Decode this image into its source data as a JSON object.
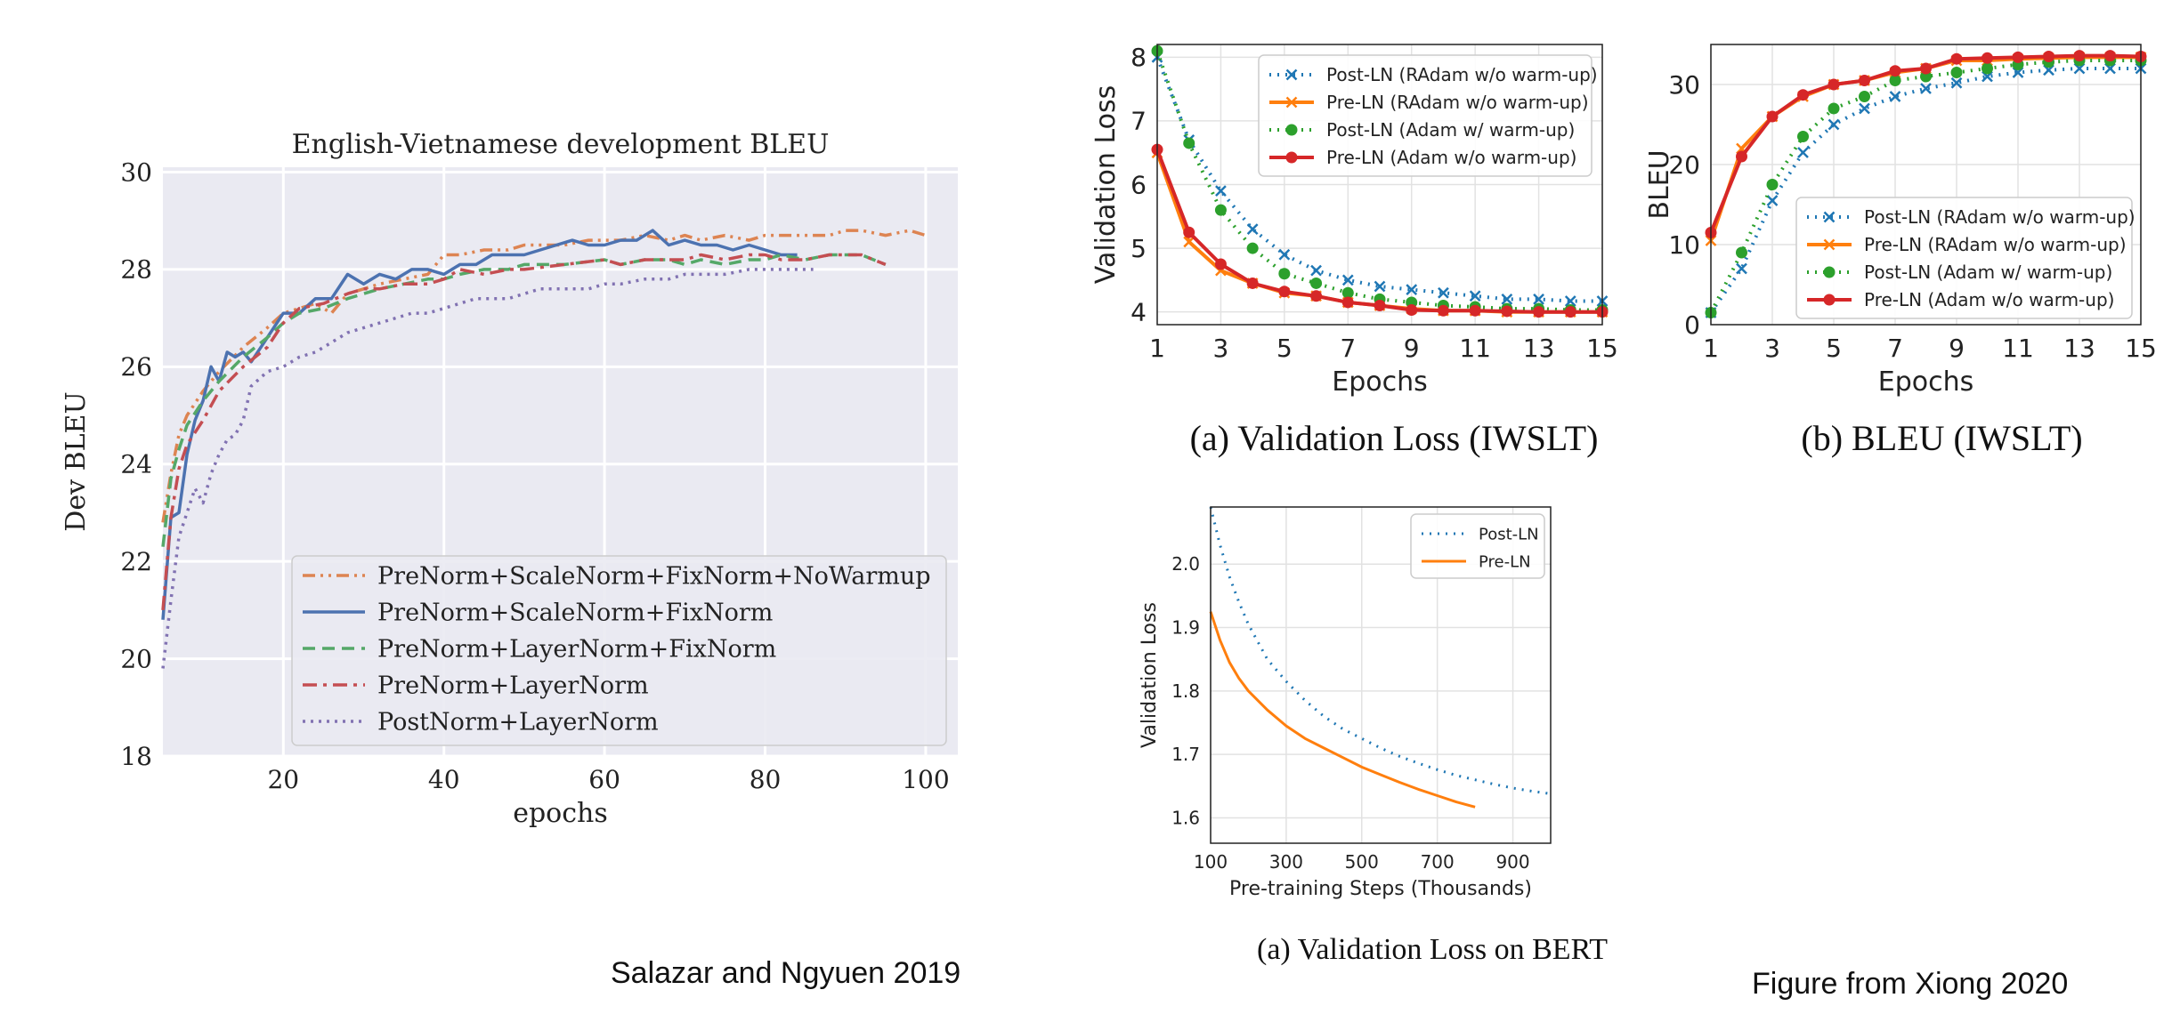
{
  "credits": {
    "left": "Salazar and Ngyuen 2019",
    "right": "Figure from Xiong 2020"
  },
  "chart_data": [
    {
      "id": "bleu_salazar",
      "type": "line",
      "title": "English-Vietnamese development BLEU",
      "xlabel": "epochs",
      "ylabel": "Dev BLEU",
      "xlim": [
        5,
        104
      ],
      "ylim": [
        18,
        30.1
      ],
      "xticks": [
        20,
        40,
        60,
        80,
        100
      ],
      "yticks": [
        18,
        20,
        22,
        24,
        26,
        28,
        30
      ],
      "grid": true,
      "legend_position": "lower-right",
      "colors": {
        "prenorm_scalenorm_fixnorm_nowarmup": "#dd8452",
        "prenorm_scalenorm_fixnorm": "#4c72b0",
        "prenorm_layernorm_fixnorm": "#55a868",
        "prenorm_layernorm": "#c44e52",
        "postnorm_layernorm": "#8172b2"
      },
      "series": [
        {
          "name": "PreNorm+ScaleNorm+FixNorm+NoWarmup",
          "dash": "dashdotdot",
          "x": [
            5,
            6,
            7,
            8,
            10,
            12,
            15,
            18,
            20,
            22,
            24,
            26,
            28,
            30,
            32,
            35,
            38,
            40,
            42,
            45,
            48,
            50,
            55,
            58,
            60,
            62,
            65,
            68,
            70,
            72,
            75,
            78,
            80,
            82,
            85,
            88,
            90,
            92,
            95,
            98,
            100
          ],
          "y": [
            22.8,
            23.8,
            24.6,
            25.0,
            25.5,
            25.9,
            26.4,
            26.8,
            27.1,
            27.2,
            27.3,
            27.1,
            27.5,
            27.6,
            27.7,
            27.8,
            27.9,
            28.3,
            28.3,
            28.4,
            28.4,
            28.5,
            28.5,
            28.6,
            28.6,
            28.6,
            28.7,
            28.6,
            28.7,
            28.6,
            28.7,
            28.6,
            28.7,
            28.7,
            28.7,
            28.7,
            28.8,
            28.8,
            28.7,
            28.8,
            28.7
          ]
        },
        {
          "name": "PreNorm+ScaleNorm+FixNorm",
          "dash": "solid",
          "x": [
            5,
            6,
            7,
            8,
            9,
            10,
            11,
            12,
            13,
            14,
            15,
            16,
            18,
            20,
            22,
            24,
            26,
            28,
            30,
            32,
            34,
            36,
            38,
            40,
            42,
            44,
            46,
            48,
            50,
            52,
            54,
            56,
            58,
            60,
            62,
            64,
            66,
            68,
            70,
            72,
            74,
            76,
            78,
            80,
            82,
            84
          ],
          "y": [
            20.8,
            22.9,
            23.0,
            24.2,
            24.9,
            25.3,
            26.0,
            25.7,
            26.3,
            26.2,
            26.3,
            26.1,
            26.6,
            27.1,
            27.1,
            27.4,
            27.4,
            27.9,
            27.7,
            27.9,
            27.8,
            28.0,
            28.0,
            27.9,
            28.1,
            28.1,
            28.3,
            28.3,
            28.3,
            28.4,
            28.5,
            28.6,
            28.5,
            28.5,
            28.6,
            28.6,
            28.8,
            28.5,
            28.6,
            28.5,
            28.5,
            28.4,
            28.5,
            28.4,
            28.3,
            28.3
          ]
        },
        {
          "name": "PreNorm+LayerNorm+FixNorm",
          "dash": "dashed",
          "x": [
            5,
            6,
            7,
            8,
            10,
            12,
            15,
            18,
            20,
            22,
            25,
            28,
            30,
            32,
            35,
            38,
            40,
            42,
            45,
            48,
            50,
            55,
            60,
            62,
            65,
            68,
            70,
            72,
            75,
            78,
            80,
            82,
            85,
            88,
            90,
            92,
            95
          ],
          "y": [
            22.3,
            23.7,
            24.3,
            24.8,
            25.3,
            25.7,
            26.2,
            26.6,
            26.9,
            27.1,
            27.2,
            27.4,
            27.5,
            27.6,
            27.7,
            27.8,
            27.8,
            27.9,
            28.0,
            28.0,
            28.1,
            28.1,
            28.2,
            28.1,
            28.2,
            28.2,
            28.1,
            28.2,
            28.1,
            28.2,
            28.2,
            28.3,
            28.2,
            28.3,
            28.3,
            28.3,
            28.1
          ]
        },
        {
          "name": "PreNorm+LayerNorm",
          "dash": "dashdot",
          "x": [
            5,
            6,
            7,
            8,
            10,
            12,
            15,
            18,
            20,
            22,
            25,
            28,
            30,
            32,
            35,
            38,
            40,
            42,
            45,
            48,
            50,
            55,
            60,
            62,
            65,
            68,
            70,
            72,
            75,
            78,
            80,
            82,
            85,
            88,
            90,
            92,
            95
          ],
          "y": [
            21.0,
            22.9,
            23.9,
            24.4,
            24.9,
            25.5,
            26.0,
            26.4,
            26.9,
            27.2,
            27.3,
            27.5,
            27.6,
            27.6,
            27.7,
            27.7,
            27.8,
            28.0,
            27.9,
            28.0,
            28.0,
            28.1,
            28.2,
            28.1,
            28.2,
            28.2,
            28.2,
            28.3,
            28.2,
            28.3,
            28.3,
            28.2,
            28.2,
            28.3,
            28.3,
            28.3,
            28.1
          ]
        },
        {
          "name": "PostNorm+LayerNorm",
          "dash": "dotted",
          "x": [
            5,
            6,
            7,
            8,
            9,
            10,
            11,
            12,
            13,
            14,
            15,
            16,
            18,
            20,
            22,
            24,
            26,
            28,
            30,
            32,
            34,
            36,
            38,
            40,
            42,
            44,
            46,
            48,
            50,
            52,
            55,
            58,
            60,
            62,
            65,
            68,
            70,
            72,
            75,
            78,
            80,
            82,
            84,
            86
          ],
          "y": [
            19.8,
            21.2,
            22.5,
            23.0,
            23.5,
            23.2,
            23.8,
            24.2,
            24.5,
            24.6,
            24.9,
            25.6,
            25.9,
            26.0,
            26.2,
            26.3,
            26.5,
            26.7,
            26.8,
            26.9,
            27.0,
            27.1,
            27.1,
            27.2,
            27.3,
            27.4,
            27.4,
            27.4,
            27.5,
            27.6,
            27.6,
            27.6,
            27.7,
            27.7,
            27.8,
            27.8,
            27.9,
            27.9,
            27.9,
            28.0,
            28.0,
            28.0,
            28.0,
            28.0
          ]
        }
      ]
    },
    {
      "id": "val_loss_iwslt",
      "type": "line",
      "caption": "(a)  Validation Loss (IWSLT)",
      "xlabel": "Epochs",
      "ylabel": "Validation Loss",
      "xlim": [
        1,
        15
      ],
      "ylim": [
        3.8,
        8.2
      ],
      "xticks": [
        1,
        3,
        5,
        7,
        9,
        11,
        13,
        15
      ],
      "yticks": [
        4,
        5,
        6,
        7,
        8
      ],
      "grid": true,
      "legend_position": "top-right",
      "colors": {
        "post_radam": "#1f77b4",
        "pre_radam": "#ff7f0e",
        "post_adam": "#2ca02c",
        "pre_adam": "#d62728"
      },
      "series": [
        {
          "name": "Post-LN (RAdam w/o warm-up)",
          "style": "dotted",
          "marker": "x",
          "x": [
            1,
            2,
            3,
            4,
            5,
            6,
            7,
            8,
            9,
            10,
            11,
            12,
            13,
            14,
            15
          ],
          "y": [
            8.0,
            6.7,
            5.9,
            5.3,
            4.9,
            4.65,
            4.5,
            4.4,
            4.35,
            4.3,
            4.25,
            4.2,
            4.2,
            4.17,
            4.17
          ]
        },
        {
          "name": "Pre-LN (RAdam w/o warm-up)",
          "style": "solid",
          "marker": "x",
          "x": [
            1,
            2,
            3,
            4,
            5,
            6,
            7,
            8,
            9,
            10,
            11,
            12,
            13,
            14,
            15
          ],
          "y": [
            6.5,
            5.1,
            4.65,
            4.45,
            4.3,
            4.25,
            4.15,
            4.1,
            4.05,
            4.02,
            4.02,
            4.0,
            4.0,
            4.0,
            4.0
          ]
        },
        {
          "name": "Post-LN (Adam w/ warm-up)",
          "style": "dotted",
          "marker": "o",
          "x": [
            1,
            2,
            3,
            4,
            5,
            6,
            7,
            8,
            9,
            10,
            11,
            12,
            13,
            14,
            15
          ],
          "y": [
            8.1,
            6.65,
            5.6,
            5.0,
            4.6,
            4.45,
            4.3,
            4.2,
            4.15,
            4.1,
            4.08,
            4.05,
            4.05,
            4.03,
            4.03
          ]
        },
        {
          "name": "Pre-LN (Adam w/o warm-up)",
          "style": "solid",
          "marker": "o",
          "x": [
            1,
            2,
            3,
            4,
            5,
            6,
            7,
            8,
            9,
            10,
            11,
            12,
            13,
            14,
            15
          ],
          "y": [
            6.55,
            5.25,
            4.75,
            4.45,
            4.32,
            4.25,
            4.15,
            4.1,
            4.03,
            4.02,
            4.02,
            4.01,
            4.0,
            4.0,
            4.0
          ]
        }
      ]
    },
    {
      "id": "bleu_iwslt",
      "type": "line",
      "caption": "(b)  BLEU (IWSLT)",
      "xlabel": "Epochs",
      "ylabel": "BLEU",
      "xlim": [
        1,
        15
      ],
      "ylim": [
        0,
        35
      ],
      "xticks": [
        1,
        3,
        5,
        7,
        9,
        11,
        13,
        15
      ],
      "yticks": [
        0,
        10,
        20,
        30
      ],
      "grid": true,
      "legend_position": "lower-right",
      "colors": {
        "post_radam": "#1f77b4",
        "pre_radam": "#ff7f0e",
        "post_adam": "#2ca02c",
        "pre_adam": "#d62728"
      },
      "series": [
        {
          "name": "Post-LN (RAdam w/o warm-up)",
          "style": "dotted",
          "marker": "x",
          "x": [
            1,
            2,
            3,
            4,
            5,
            6,
            7,
            8,
            9,
            10,
            11,
            12,
            13,
            14,
            15
          ],
          "y": [
            1.5,
            7.0,
            15.5,
            21.5,
            25.0,
            27.0,
            28.5,
            29.5,
            30.2,
            31.0,
            31.5,
            31.8,
            32.0,
            32.0,
            32.0
          ]
        },
        {
          "name": "Pre-LN (RAdam w/o warm-up)",
          "style": "solid",
          "marker": "x",
          "x": [
            1,
            2,
            3,
            4,
            5,
            6,
            7,
            8,
            9,
            10,
            11,
            12,
            13,
            14,
            15
          ],
          "y": [
            10.5,
            22.0,
            26.0,
            28.5,
            30.0,
            30.5,
            31.5,
            32.0,
            33.0,
            33.0,
            33.2,
            33.3,
            33.4,
            33.4,
            33.4
          ]
        },
        {
          "name": "Post-LN (Adam w/ warm-up)",
          "style": "dotted",
          "marker": "o",
          "x": [
            1,
            2,
            3,
            4,
            5,
            6,
            7,
            8,
            9,
            10,
            11,
            12,
            13,
            14,
            15
          ],
          "y": [
            1.5,
            9.0,
            17.5,
            23.5,
            27.0,
            28.5,
            30.5,
            31.0,
            31.5,
            32.0,
            32.5,
            32.8,
            33.0,
            33.0,
            33.0
          ]
        },
        {
          "name": "Pre-LN (Adam w/o warm-up)",
          "style": "solid",
          "marker": "o",
          "x": [
            1,
            2,
            3,
            4,
            5,
            6,
            7,
            8,
            9,
            10,
            11,
            12,
            13,
            14,
            15
          ],
          "y": [
            11.5,
            21.0,
            26.0,
            28.7,
            30.0,
            30.5,
            31.7,
            32.0,
            33.2,
            33.3,
            33.4,
            33.5,
            33.6,
            33.6,
            33.5
          ]
        }
      ]
    },
    {
      "id": "val_loss_bert",
      "type": "line",
      "caption": "(a)  Validation Loss on BERT",
      "xlabel": "Pre-training Steps (Thousands)",
      "ylabel": "Validation Loss",
      "xlim": [
        100,
        1000
      ],
      "ylim": [
        1.56,
        2.09
      ],
      "xticks": [
        100,
        300,
        500,
        700,
        900
      ],
      "yticks": [
        1.6,
        1.7,
        1.8,
        1.9,
        2.0
      ],
      "grid": true,
      "legend_position": "top-right",
      "colors": {
        "post": "#1f77b4",
        "pre": "#ff7f0e"
      },
      "series": [
        {
          "name": "Post-LN",
          "style": "dotted",
          "x": [
            100,
            125,
            150,
            175,
            200,
            250,
            300,
            350,
            400,
            450,
            500,
            550,
            600,
            650,
            700,
            750,
            800,
            850,
            900,
            950,
            1000
          ],
          "y": [
            2.09,
            2.03,
            1.98,
            1.94,
            1.905,
            1.85,
            1.815,
            1.785,
            1.76,
            1.74,
            1.725,
            1.71,
            1.697,
            1.686,
            1.676,
            1.667,
            1.66,
            1.653,
            1.647,
            1.642,
            1.638
          ]
        },
        {
          "name": "Pre-LN",
          "style": "solid",
          "x": [
            100,
            125,
            150,
            175,
            200,
            250,
            300,
            350,
            400,
            450,
            500,
            550,
            600,
            650,
            700,
            750,
            800
          ],
          "y": [
            1.925,
            1.88,
            1.845,
            1.82,
            1.8,
            1.77,
            1.745,
            1.725,
            1.71,
            1.695,
            1.68,
            1.668,
            1.656,
            1.645,
            1.635,
            1.625,
            1.617
          ]
        }
      ]
    }
  ]
}
